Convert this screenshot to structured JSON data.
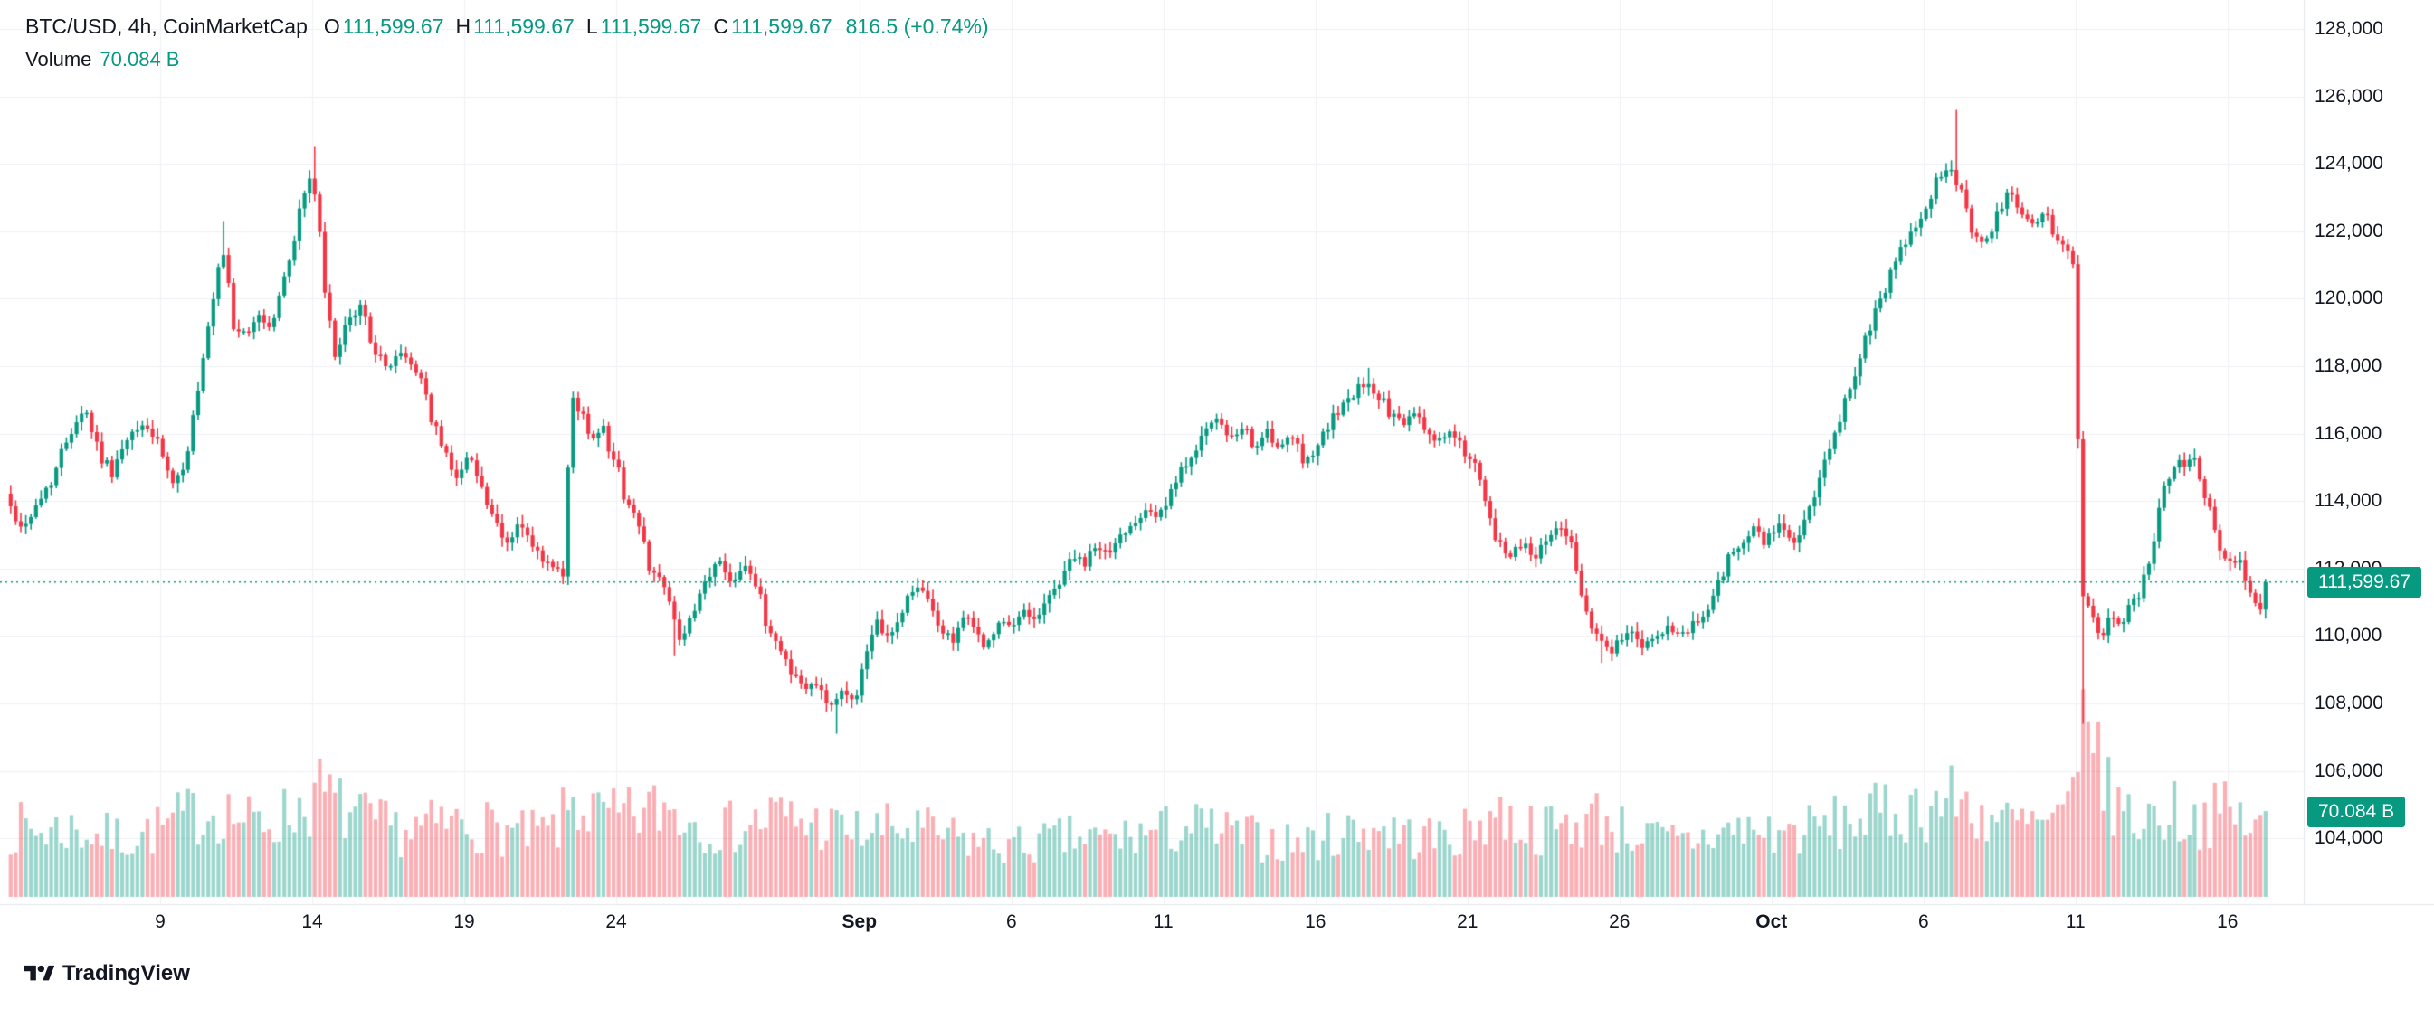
{
  "legend": {
    "symbol_title": "BTC/USD, 4h, CoinMarketCap",
    "ohlc": [
      {
        "label": "O",
        "value": "111,599.67"
      },
      {
        "label": "H",
        "value": "111,599.67"
      },
      {
        "label": "L",
        "value": "111,599.67"
      },
      {
        "label": "C",
        "value": "111,599.67"
      }
    ],
    "change": "816.5 (+0.74%)",
    "volume_label": "Volume",
    "volume_value": "70.084 B"
  },
  "badges": {
    "current_price": "111,599.67",
    "volume": "70.084 B"
  },
  "footer": {
    "brand": "TradingView"
  },
  "axes": {
    "price_labels": [
      "128,000",
      "126,000",
      "124,000",
      "122,000",
      "120,000",
      "118,000",
      "116,000",
      "114,000",
      "112,000",
      "110,000",
      "108,000",
      "106,000",
      "104,000"
    ],
    "time_ticks": [
      {
        "label": "9",
        "d": 5
      },
      {
        "label": "14",
        "d": 10
      },
      {
        "label": "19",
        "d": 15
      },
      {
        "label": "24",
        "d": 20
      },
      {
        "label": "Sep",
        "d": 28,
        "bold": true
      },
      {
        "label": "6",
        "d": 33
      },
      {
        "label": "11",
        "d": 38
      },
      {
        "label": "16",
        "d": 43
      },
      {
        "label": "21",
        "d": 48
      },
      {
        "label": "26",
        "d": 53
      },
      {
        "label": "Oct",
        "d": 58,
        "bold": true
      },
      {
        "label": "6",
        "d": 63
      },
      {
        "label": "11",
        "d": 68
      },
      {
        "label": "16",
        "d": 73
      }
    ]
  },
  "chart_data": {
    "type": "candlestick",
    "title": "BTC/USD, 4h, CoinMarketCap",
    "symbol": "BTC/USD",
    "interval": "4h",
    "source": "CoinMarketCap",
    "xlabel": "",
    "ylabel": "",
    "ylim": [
      103000,
      128600
    ],
    "price_axis_top": 128000,
    "price_axis_step": 2000,
    "ohlc_current": {
      "open": 111599.67,
      "high": 111599.67,
      "low": 111599.67,
      "close": 111599.67
    },
    "previous_close": 110783.17,
    "change": 816.5,
    "change_pct": 0.74,
    "volume_current_b": 70.084,
    "candle_interval_days": 0.16667,
    "candle_count": 446,
    "x_domain_days": [
      0,
      74.33
    ],
    "price_path": [
      [
        0,
        114200
      ],
      [
        0.5,
        113200
      ],
      [
        1,
        113800
      ],
      [
        1.6,
        114800
      ],
      [
        2.2,
        116300
      ],
      [
        2.6,
        116800
      ],
      [
        3.1,
        115400
      ],
      [
        3.5,
        114900
      ],
      [
        4.1,
        115900
      ],
      [
        4.6,
        116300
      ],
      [
        5.1,
        115500
      ],
      [
        5.5,
        114300
      ],
      [
        5.9,
        115200
      ],
      [
        6.4,
        117500
      ],
      [
        6.9,
        120200
      ],
      [
        7.15,
        121400
      ],
      [
        7.5,
        119300
      ],
      [
        7.9,
        118800
      ],
      [
        8.3,
        119600
      ],
      [
        8.7,
        119100
      ],
      [
        9.1,
        120300
      ],
      [
        9.5,
        121900
      ],
      [
        9.9,
        123400
      ],
      [
        10.1,
        123700
      ],
      [
        10.35,
        121500
      ],
      [
        10.6,
        119200
      ],
      [
        10.9,
        118400
      ],
      [
        11.3,
        119300
      ],
      [
        11.7,
        119800
      ],
      [
        12.1,
        118600
      ],
      [
        12.5,
        117900
      ],
      [
        12.9,
        118400
      ],
      [
        13.3,
        118100
      ],
      [
        13.7,
        117600
      ],
      [
        14.1,
        116200
      ],
      [
        14.5,
        115300
      ],
      [
        14.9,
        114700
      ],
      [
        15.3,
        115400
      ],
      [
        15.7,
        114300
      ],
      [
        16.1,
        113200
      ],
      [
        16.5,
        112700
      ],
      [
        16.9,
        113400
      ],
      [
        17.3,
        112600
      ],
      [
        17.7,
        112200
      ],
      [
        18.1,
        111900
      ],
      [
        18.35,
        111700
      ],
      [
        18.6,
        116500
      ],
      [
        18.9,
        116900
      ],
      [
        19.2,
        115800
      ],
      [
        19.6,
        116300
      ],
      [
        20,
        115300
      ],
      [
        20.4,
        114100
      ],
      [
        20.8,
        113300
      ],
      [
        21.2,
        112100
      ],
      [
        21.6,
        111600
      ],
      [
        22,
        110300
      ],
      [
        22.3,
        109900
      ],
      [
        22.7,
        110800
      ],
      [
        23.1,
        111800
      ],
      [
        23.5,
        112200
      ],
      [
        23.9,
        111600
      ],
      [
        24.3,
        112300
      ],
      [
        24.7,
        111400
      ],
      [
        25.1,
        110200
      ],
      [
        25.5,
        109600
      ],
      [
        25.9,
        108900
      ],
      [
        26.3,
        108400
      ],
      [
        26.7,
        108700
      ],
      [
        27.1,
        107900
      ],
      [
        27.5,
        108300
      ],
      [
        27.9,
        108100
      ],
      [
        28.3,
        109300
      ],
      [
        28.7,
        110400
      ],
      [
        29.1,
        109900
      ],
      [
        29.5,
        110800
      ],
      [
        29.9,
        111500
      ],
      [
        30.3,
        111100
      ],
      [
        30.7,
        110300
      ],
      [
        31.1,
        109800
      ],
      [
        31.5,
        110600
      ],
      [
        31.9,
        110100
      ],
      [
        32.3,
        109700
      ],
      [
        32.7,
        110400
      ],
      [
        33.1,
        110200
      ],
      [
        33.5,
        110800
      ],
      [
        33.9,
        110500
      ],
      [
        34.3,
        111100
      ],
      [
        34.7,
        111700
      ],
      [
        35.1,
        112400
      ],
      [
        35.5,
        112100
      ],
      [
        35.9,
        112700
      ],
      [
        36.3,
        112400
      ],
      [
        36.7,
        113000
      ],
      [
        37.1,
        113400
      ],
      [
        37.5,
        113900
      ],
      [
        37.9,
        113500
      ],
      [
        38.3,
        114100
      ],
      [
        38.7,
        114900
      ],
      [
        39.1,
        115600
      ],
      [
        39.5,
        116100
      ],
      [
        39.9,
        116400
      ],
      [
        40.3,
        115800
      ],
      [
        40.7,
        116100
      ],
      [
        41.1,
        115700
      ],
      [
        41.5,
        116000
      ],
      [
        41.9,
        115500
      ],
      [
        42.3,
        115900
      ],
      [
        42.7,
        115200
      ],
      [
        43.1,
        115600
      ],
      [
        43.5,
        116200
      ],
      [
        43.9,
        116700
      ],
      [
        44.3,
        117100
      ],
      [
        44.7,
        117500
      ],
      [
        45.1,
        117200
      ],
      [
        45.5,
        116700
      ],
      [
        45.9,
        116200
      ],
      [
        46.3,
        116600
      ],
      [
        46.7,
        116100
      ],
      [
        47.1,
        115800
      ],
      [
        47.5,
        116000
      ],
      [
        47.9,
        115600
      ],
      [
        48.3,
        115100
      ],
      [
        48.7,
        113600
      ],
      [
        49.1,
        112700
      ],
      [
        49.5,
        112400
      ],
      [
        49.9,
        112800
      ],
      [
        50.3,
        112300
      ],
      [
        50.7,
        112900
      ],
      [
        51.1,
        113400
      ],
      [
        51.5,
        112600
      ],
      [
        51.9,
        111200
      ],
      [
        52.3,
        109900
      ],
      [
        52.7,
        109500
      ],
      [
        53.1,
        109800
      ],
      [
        53.5,
        110100
      ],
      [
        53.9,
        109700
      ],
      [
        54.3,
        109900
      ],
      [
        54.7,
        110200
      ],
      [
        55.1,
        109900
      ],
      [
        55.5,
        110300
      ],
      [
        55.9,
        110600
      ],
      [
        56.3,
        111500
      ],
      [
        56.7,
        112300
      ],
      [
        57.1,
        112700
      ],
      [
        57.5,
        113100
      ],
      [
        57.9,
        112800
      ],
      [
        58.3,
        113300
      ],
      [
        58.7,
        112700
      ],
      [
        59.1,
        113200
      ],
      [
        59.5,
        114100
      ],
      [
        59.9,
        115200
      ],
      [
        60.3,
        116400
      ],
      [
        60.7,
        117500
      ],
      [
        61.1,
        118600
      ],
      [
        61.5,
        119600
      ],
      [
        61.9,
        120400
      ],
      [
        62.3,
        121300
      ],
      [
        62.7,
        122100
      ],
      [
        63.1,
        122700
      ],
      [
        63.5,
        123400
      ],
      [
        63.9,
        124000
      ],
      [
        64.3,
        123300
      ],
      [
        64.7,
        122000
      ],
      [
        65.1,
        121600
      ],
      [
        65.5,
        122400
      ],
      [
        65.9,
        123100
      ],
      [
        66.3,
        122600
      ],
      [
        66.7,
        122200
      ],
      [
        67.1,
        122500
      ],
      [
        67.5,
        121800
      ],
      [
        67.9,
        121300
      ],
      [
        68.05,
        120800
      ],
      [
        68.2,
        113500
      ],
      [
        68.35,
        109800
      ],
      [
        68.5,
        111000
      ],
      [
        68.7,
        110200
      ],
      [
        69,
        109900
      ],
      [
        69.3,
        110700
      ],
      [
        69.6,
        110300
      ],
      [
        69.9,
        110900
      ],
      [
        70.2,
        111200
      ],
      [
        70.5,
        112300
      ],
      [
        70.8,
        113600
      ],
      [
        71.1,
        114700
      ],
      [
        71.4,
        115400
      ],
      [
        71.7,
        115100
      ],
      [
        72,
        115400
      ],
      [
        72.3,
        114400
      ],
      [
        72.6,
        113400
      ],
      [
        72.9,
        112500
      ],
      [
        73.2,
        112000
      ],
      [
        73.5,
        112400
      ],
      [
        73.8,
        111300
      ],
      [
        74.05,
        110783
      ],
      [
        74.3,
        111600
      ]
    ],
    "spikes": [
      {
        "d": 7.15,
        "high": 122300
      },
      {
        "d": 10.05,
        "high": 124500
      },
      {
        "d": 21.9,
        "low": 109400
      },
      {
        "d": 27.3,
        "low": 107100
      },
      {
        "d": 44.7,
        "high": 117950
      },
      {
        "d": 52.45,
        "low": 109200
      },
      {
        "d": 64.05,
        "high": 125600
      },
      {
        "d": 68.3,
        "low": 107400
      }
    ],
    "volume_path_b": [
      [
        0,
        62
      ],
      [
        1,
        58
      ],
      [
        2,
        60
      ],
      [
        3,
        54
      ],
      [
        4,
        52
      ],
      [
        5,
        60
      ],
      [
        6,
        72
      ],
      [
        7,
        78
      ],
      [
        8,
        64
      ],
      [
        9,
        70
      ],
      [
        9.8,
        82
      ],
      [
        10.3,
        92
      ],
      [
        11,
        76
      ],
      [
        12,
        64
      ],
      [
        13,
        58
      ],
      [
        14,
        62
      ],
      [
        15,
        66
      ],
      [
        16,
        60
      ],
      [
        17,
        54
      ],
      [
        18,
        58
      ],
      [
        18.6,
        84
      ],
      [
        19.3,
        72
      ],
      [
        20,
        68
      ],
      [
        21,
        74
      ],
      [
        21.6,
        80
      ],
      [
        22.5,
        68
      ],
      [
        23.5,
        60
      ],
      [
        24.5,
        64
      ],
      [
        25.2,
        72
      ],
      [
        26,
        66
      ],
      [
        27,
        62
      ],
      [
        28,
        56
      ],
      [
        29,
        60
      ],
      [
        30,
        58
      ],
      [
        31,
        52
      ],
      [
        32,
        48
      ],
      [
        33,
        44
      ],
      [
        34,
        48
      ],
      [
        35,
        52
      ],
      [
        36,
        50
      ],
      [
        37,
        54
      ],
      [
        38,
        58
      ],
      [
        39,
        62
      ],
      [
        40,
        56
      ],
      [
        41,
        52
      ],
      [
        42,
        48
      ],
      [
        43,
        50
      ],
      [
        44,
        58
      ],
      [
        45,
        62
      ],
      [
        46,
        54
      ],
      [
        47,
        52
      ],
      [
        48,
        56
      ],
      [
        48.8,
        76
      ],
      [
        49.5,
        66
      ],
      [
        50.5,
        58
      ],
      [
        51.5,
        64
      ],
      [
        52.3,
        72
      ],
      [
        53,
        60
      ],
      [
        54,
        52
      ],
      [
        55,
        48
      ],
      [
        56,
        54
      ],
      [
        57,
        60
      ],
      [
        58,
        56
      ],
      [
        59,
        58
      ],
      [
        60,
        64
      ],
      [
        61,
        70
      ],
      [
        62,
        74
      ],
      [
        63,
        80
      ],
      [
        64,
        86
      ],
      [
        65,
        72
      ],
      [
        66,
        64
      ],
      [
        67,
        62
      ],
      [
        67.8,
        72
      ],
      [
        68.1,
        98
      ],
      [
        68.3,
        185
      ],
      [
        68.55,
        130
      ],
      [
        68.8,
        105
      ],
      [
        69.2,
        88
      ],
      [
        69.6,
        74
      ],
      [
        70,
        68
      ],
      [
        70.6,
        72
      ],
      [
        71.2,
        76
      ],
      [
        71.8,
        68
      ],
      [
        72.4,
        72
      ],
      [
        73,
        74
      ],
      [
        73.6,
        66
      ],
      [
        74.05,
        58
      ],
      [
        74.3,
        70.084
      ]
    ],
    "colors": {
      "up": "#089981",
      "down": "#F23645",
      "grid": "#EFF1F5",
      "axis_border": "#E4E7EC",
      "text": "#131722",
      "accent": "#089981",
      "badge_text": "#FFFFFF",
      "volume_alpha": 0.4
    },
    "legend_position": "top-left",
    "grid": true
  }
}
